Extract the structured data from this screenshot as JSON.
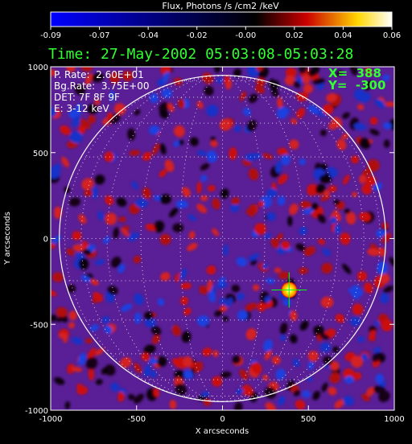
{
  "chart_data": {
    "type": "heatmap",
    "title": "Time: 27-May-2002 05:03:08-05:03:28",
    "colorbar": {
      "label": "Flux, Photons /s /cm2 /keV",
      "ticks": [
        "-0.09",
        "-0.07",
        "-0.04",
        "-0.02",
        "-0.00",
        "0.02",
        "0.04",
        "0.06"
      ],
      "range": [
        -0.09,
        0.06
      ],
      "colormap": [
        "#0000ff",
        "#000000",
        "#cc0000",
        "#ffd700",
        "#ffffff"
      ]
    },
    "xlabel": "X arcseconds",
    "ylabel": "Y arcseconds",
    "xlim": [
      -1000,
      1000
    ],
    "ylim": [
      -1000,
      1000
    ],
    "xticks": [
      "-1000",
      "-500",
      "0",
      "500",
      "1000"
    ],
    "yticks": [
      "-1000",
      "-500",
      "0",
      "500",
      "1000"
    ],
    "solar_limb_radius": 950,
    "grid_spacing_deg": 15,
    "source": {
      "x": 388,
      "y": -300
    },
    "info": {
      "p_rate": "P. Rate:  2.60E+01",
      "bg_rate": "Bg.Rate:  3.75E+00",
      "det": "DET: 7F 8F 9F",
      "energy": "E: 3-12 keV"
    },
    "cursor": {
      "x_label": "X=  388",
      "y_label": "Y=  -300"
    },
    "colors": {
      "background": "#5a1f96",
      "title": "#33ff33",
      "cursor_text": "#33ff33",
      "limb": "#ffffff",
      "crosshair": "#00ff00"
    }
  }
}
